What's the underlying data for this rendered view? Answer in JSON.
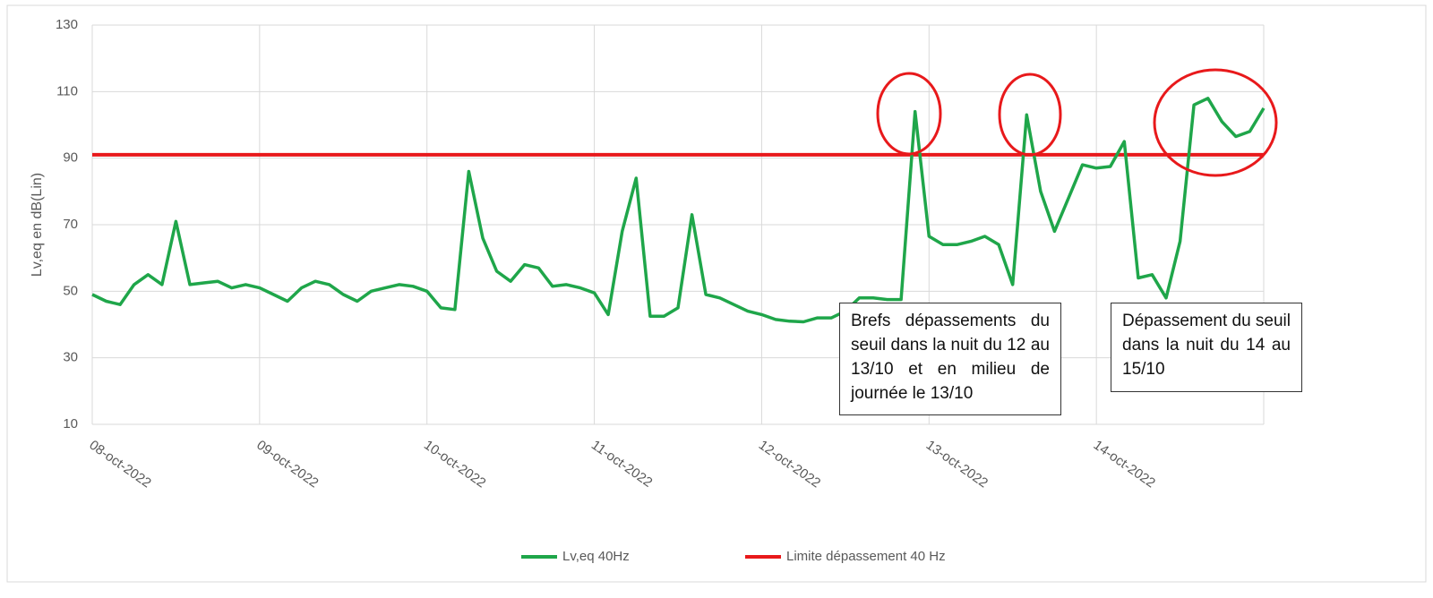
{
  "chart_data": {
    "type": "line",
    "y_label": "Lv,eq en dB(Lin)",
    "ylim": [
      10,
      130
    ],
    "yticks": [
      10,
      30,
      50,
      70,
      90,
      110,
      130
    ],
    "grid": true,
    "categories": [
      "08-oct-2022",
      null,
      null,
      null,
      null,
      null,
      null,
      null,
      null,
      null,
      null,
      null,
      "09-oct-2022",
      null,
      null,
      null,
      null,
      null,
      null,
      null,
      null,
      null,
      null,
      null,
      "10-oct-2022",
      null,
      null,
      null,
      null,
      null,
      null,
      null,
      null,
      null,
      null,
      null,
      "11-oct-2022",
      null,
      null,
      null,
      null,
      null,
      null,
      null,
      null,
      null,
      null,
      null,
      "12-oct-2022",
      null,
      null,
      null,
      null,
      null,
      null,
      null,
      null,
      null,
      null,
      null,
      "13-oct-2022",
      null,
      null,
      null,
      null,
      null,
      null,
      null,
      null,
      null,
      null,
      null,
      "14-oct-2022",
      null,
      null,
      null,
      null,
      null,
      null,
      null,
      null,
      null,
      null,
      null,
      null
    ],
    "series": [
      {
        "name": "Lv,eq 40Hz",
        "color": "#1fa64a",
        "values": [
          49,
          47,
          46,
          52,
          55,
          52,
          71,
          52,
          52.5,
          53,
          51,
          52,
          51,
          49,
          47,
          51,
          53,
          52,
          49,
          47,
          50,
          51,
          52,
          51.5,
          50,
          45,
          44.5,
          86,
          66,
          56,
          53,
          58,
          57,
          51.5,
          52,
          51,
          49.5,
          43,
          68,
          84,
          42.5,
          42.5,
          45,
          73,
          49,
          48,
          46,
          44,
          43,
          41.5,
          41,
          40.8,
          42,
          42,
          44,
          48,
          48,
          47.5,
          47.5,
          104,
          66.5,
          64,
          64,
          65,
          66.5,
          64,
          52,
          103,
          80,
          68,
          78,
          88,
          87,
          87.5,
          95,
          54,
          55,
          48,
          65,
          106,
          108,
          101,
          96.5,
          98,
          105
        ]
      },
      {
        "name": "Limite dépassement 40 Hz",
        "color": "#e8191b",
        "values": [
          91,
          91,
          91,
          91,
          91,
          91,
          91,
          91,
          91,
          91,
          91,
          91,
          91,
          91,
          91,
          91,
          91,
          91,
          91,
          91,
          91,
          91,
          91,
          91,
          91,
          91,
          91,
          91,
          91,
          91,
          91,
          91,
          91,
          91,
          91,
          91,
          91,
          91,
          91,
          91,
          91,
          91,
          91,
          91,
          91,
          91,
          91,
          91,
          91,
          91,
          91,
          91,
          91,
          91,
          91,
          91,
          91,
          91,
          91,
          91,
          91,
          91,
          91,
          91,
          91,
          91,
          91,
          91,
          91,
          91,
          91,
          91,
          91,
          91,
          91,
          91,
          91,
          91,
          91,
          91,
          91,
          91,
          91,
          91,
          91
        ]
      }
    ],
    "annotations": [
      "Brefs dépassements du seuil dans la nuit du 12 au 13/10 et en milieu de journée le 13/10",
      "Dépassement du seuil dans la nuit du 14 au 15/10"
    ]
  }
}
